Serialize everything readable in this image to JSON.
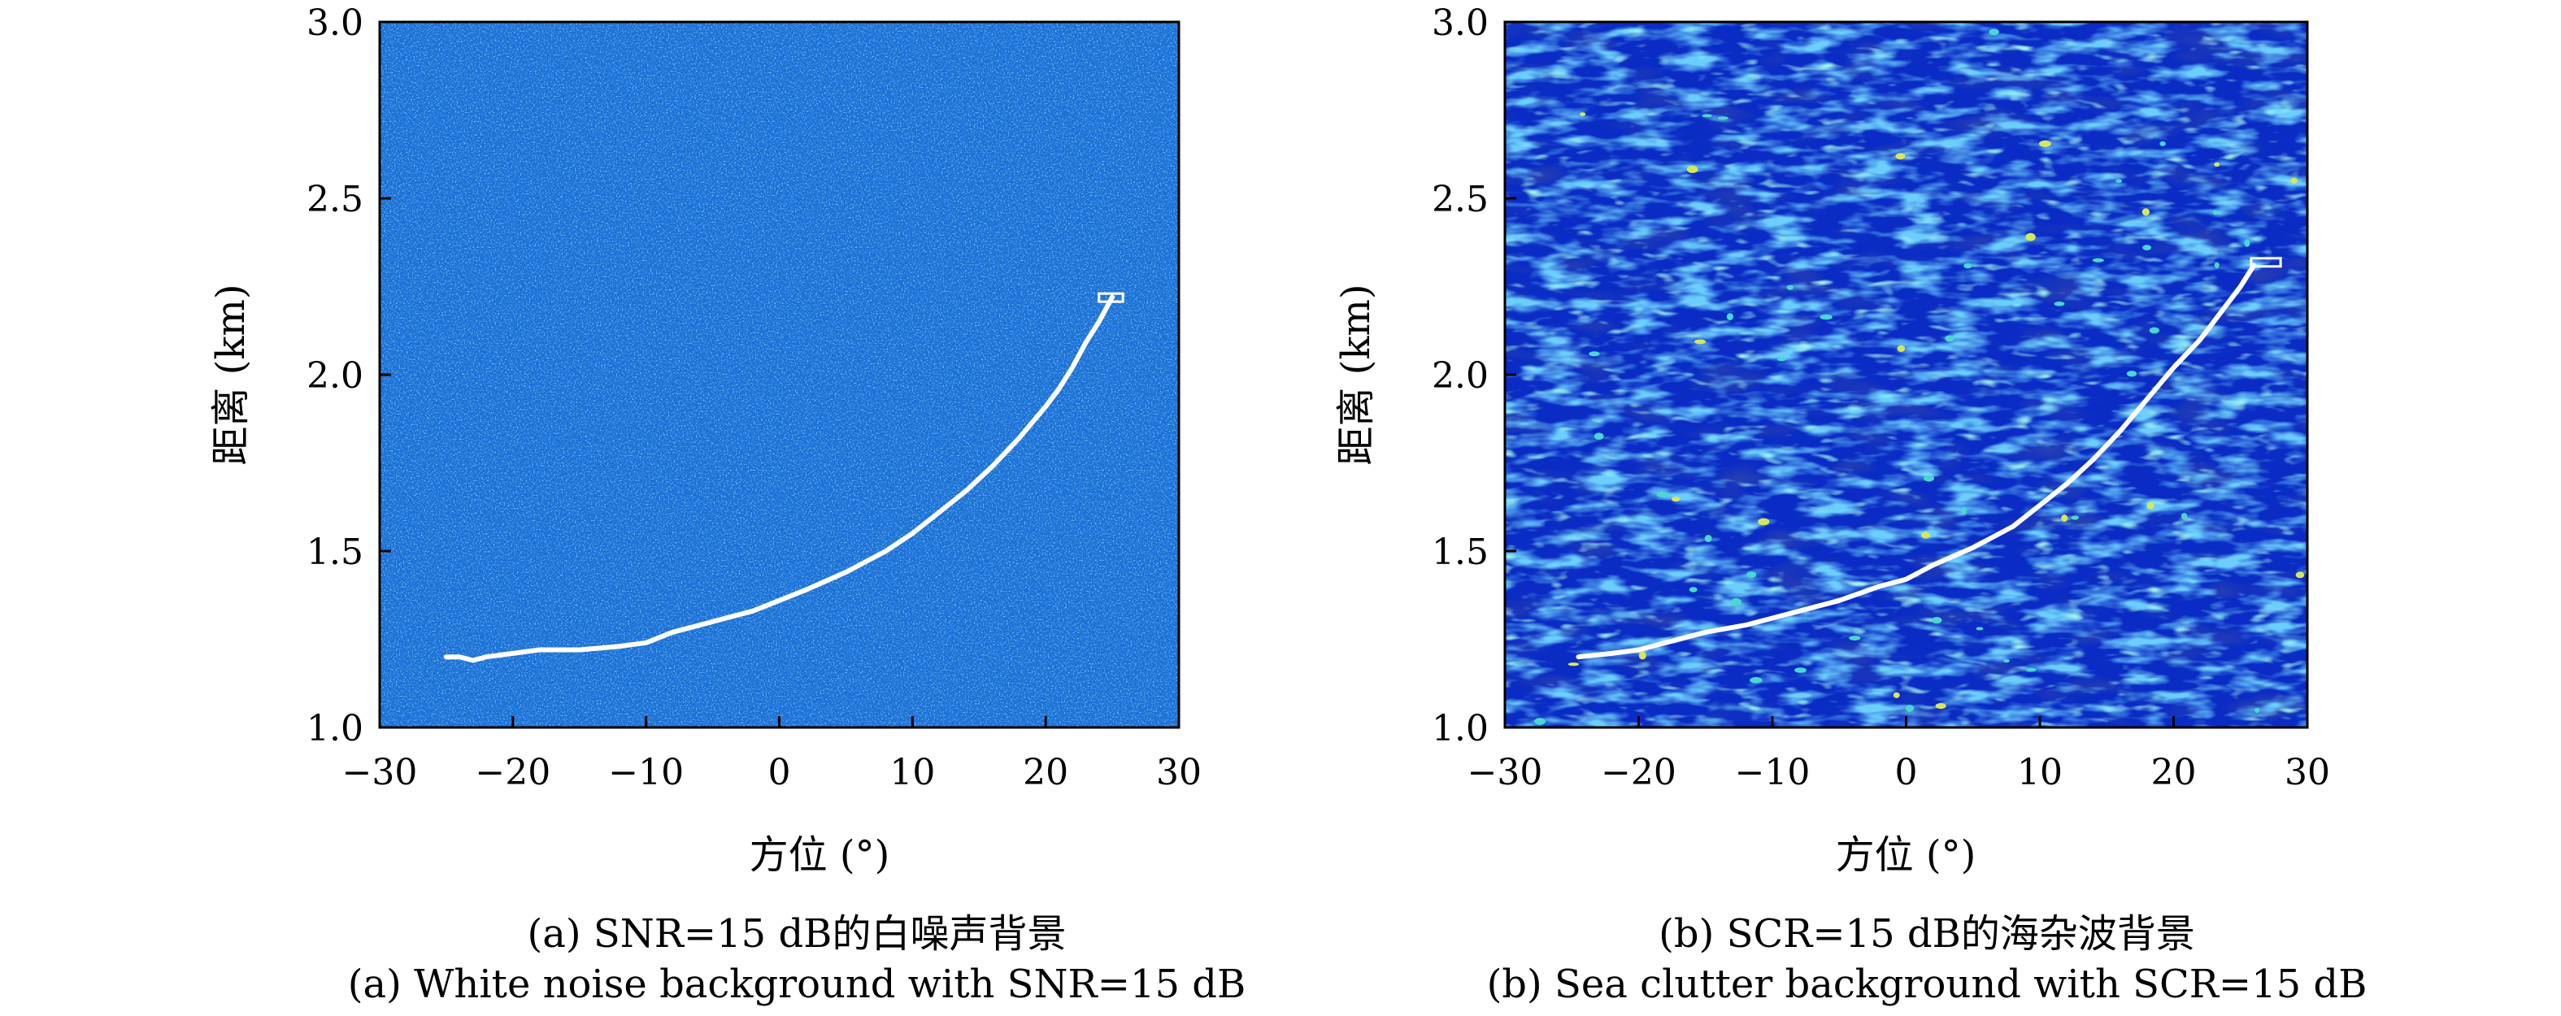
{
  "chart_data": [
    {
      "type": "scatter",
      "panel": "a",
      "background": "white-noise",
      "xlabel": "方位 (°)",
      "ylabel": "距离 (km)",
      "xlim": [
        -30,
        30
      ],
      "ylim": [
        1.0,
        3.0
      ],
      "xticks": [
        "−30",
        "−20",
        "−10",
        "0",
        "10",
        "20",
        "30"
      ],
      "yticks": [
        "1.0",
        "1.5",
        "2.0",
        "2.5",
        "3.0"
      ],
      "grid": false,
      "colors": {
        "background": "#1a6fd6",
        "noise_light": "#56b4f0",
        "noise_dark": "#0c48b0",
        "track": "#ffffff"
      },
      "series": [
        {
          "x": [
            -25,
            -24,
            -23,
            -22,
            -20,
            -18,
            -15,
            -12,
            -10,
            -8,
            -5,
            -2,
            0,
            2,
            5,
            8,
            10,
            12,
            14,
            16,
            18,
            20,
            21,
            22,
            23,
            24,
            25
          ],
          "y": [
            1.2,
            1.2,
            1.19,
            1.2,
            1.21,
            1.22,
            1.22,
            1.23,
            1.24,
            1.27,
            1.3,
            1.33,
            1.36,
            1.39,
            1.44,
            1.5,
            1.55,
            1.61,
            1.67,
            1.74,
            1.82,
            1.91,
            1.96,
            2.02,
            2.09,
            2.15,
            2.22
          ]
        }
      ],
      "target_box": {
        "x": [
          24.0,
          25.8
        ],
        "y": [
          2.21,
          2.23
        ]
      },
      "caption_zh": "(a) SNR=15 dB的白噪声背景",
      "caption_en": "(a) White noise background with SNR=15 dB"
    },
    {
      "type": "scatter",
      "panel": "b",
      "background": "sea-clutter",
      "xlabel": "方位 (°)",
      "ylabel": "距离 (km)",
      "xlim": [
        -30,
        30
      ],
      "ylim": [
        1.0,
        3.0
      ],
      "xticks": [
        "−30",
        "−20",
        "−10",
        "0",
        "10",
        "20",
        "30"
      ],
      "yticks": [
        "1.0",
        "1.5",
        "2.0",
        "2.5",
        "3.0"
      ],
      "grid": false,
      "colors": {
        "background": "#0a2cc4",
        "clutter_mid": "#1d7ae0",
        "clutter_high": "#48d8d0",
        "clutter_peak": "#d6e85a",
        "track": "#ffffff"
      },
      "series": [
        {
          "x": [
            -24.5,
            -22,
            -20,
            -18,
            -15,
            -12,
            -10,
            -8,
            -5,
            -2,
            0,
            2,
            5,
            8,
            10,
            12,
            14,
            16,
            18,
            20,
            22,
            23,
            24,
            25,
            26
          ],
          "y": [
            1.2,
            1.21,
            1.22,
            1.24,
            1.27,
            1.29,
            1.31,
            1.33,
            1.36,
            1.4,
            1.42,
            1.46,
            1.51,
            1.57,
            1.63,
            1.69,
            1.76,
            1.84,
            1.93,
            2.02,
            2.1,
            2.15,
            2.2,
            2.25,
            2.31
          ]
        }
      ],
      "target_box": {
        "x": [
          25.8,
          28.0
        ],
        "y": [
          2.31,
          2.33
        ]
      },
      "caption_zh": "(b) SCR=15 dB的海杂波背景",
      "caption_en": "(b) Sea clutter background with SCR=15 dB"
    }
  ]
}
